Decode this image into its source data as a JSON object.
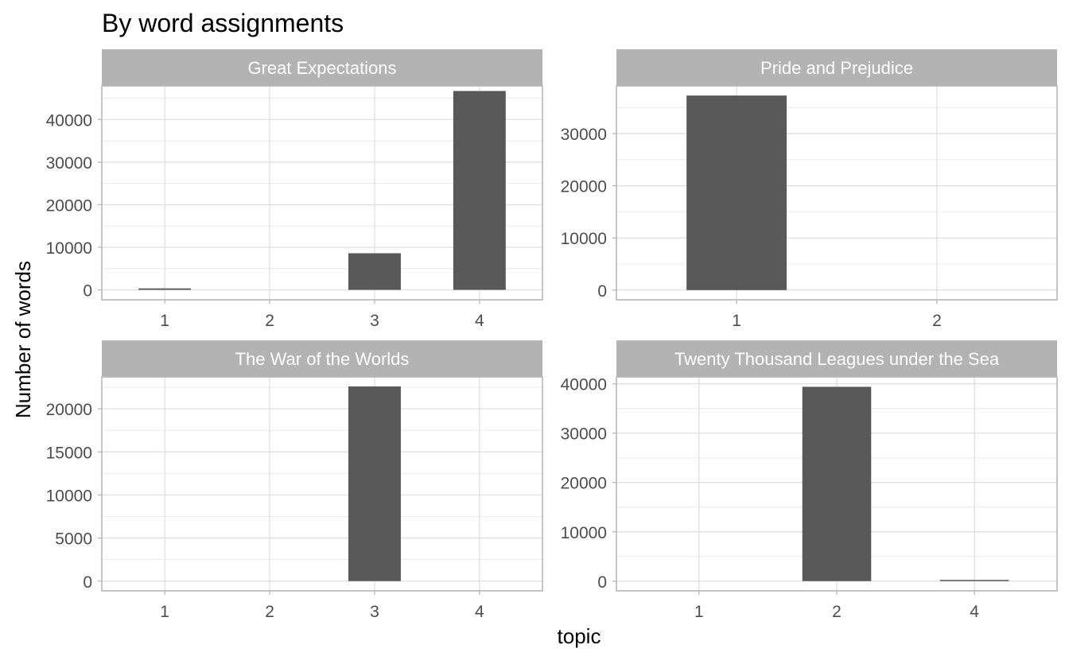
{
  "title": "By word assignments",
  "xlabel": "topic",
  "ylabel": "Number of words",
  "colors": {
    "bar": "#595959",
    "strip": "#b3b3b3",
    "strip_text": "#ffffff",
    "grid_major": "#dedede",
    "grid_minor": "#ebebeb",
    "panel_border": "#b3b3b3",
    "tick_text": "#4d4d4d",
    "title_text": "#000000"
  },
  "chart_data": [
    {
      "type": "bar",
      "title": "Great Expectations",
      "categories": [
        "1",
        "2",
        "3",
        "4"
      ],
      "values": [
        350,
        0,
        8600,
        46700
      ],
      "ylim": [
        -2330,
        47900
      ],
      "yticks": [
        0,
        10000,
        20000,
        30000,
        40000
      ],
      "ytick_labels": [
        "0",
        "10000",
        "20000",
        "30000",
        "40000"
      ],
      "grid": true
    },
    {
      "type": "bar",
      "title": "Pride and Prejudice",
      "categories": [
        "1",
        "2"
      ],
      "values": [
        37300,
        0
      ],
      "ylim": [
        -1860,
        39150
      ],
      "yticks": [
        0,
        10000,
        20000,
        30000
      ],
      "ytick_labels": [
        "0",
        "10000",
        "20000",
        "30000"
      ],
      "grid": true
    },
    {
      "type": "bar",
      "title": "The War of the Worlds",
      "categories": [
        "1",
        "2",
        "3",
        "4"
      ],
      "values": [
        0,
        0,
        22600,
        0
      ],
      "ylim": [
        -1130,
        23700
      ],
      "yticks": [
        0,
        5000,
        10000,
        15000,
        20000
      ],
      "ytick_labels": [
        "0",
        "5000",
        "10000",
        "15000",
        "20000"
      ],
      "grid": true
    },
    {
      "type": "bar",
      "title": "Twenty Thousand Leagues under the Sea",
      "categories": [
        "1",
        "2",
        "4"
      ],
      "values": [
        0,
        39400,
        150
      ],
      "ylim": [
        -1970,
        41400
      ],
      "yticks": [
        0,
        10000,
        20000,
        30000,
        40000
      ],
      "ytick_labels": [
        "0",
        "10000",
        "20000",
        "30000",
        "40000"
      ],
      "grid": true
    }
  ]
}
